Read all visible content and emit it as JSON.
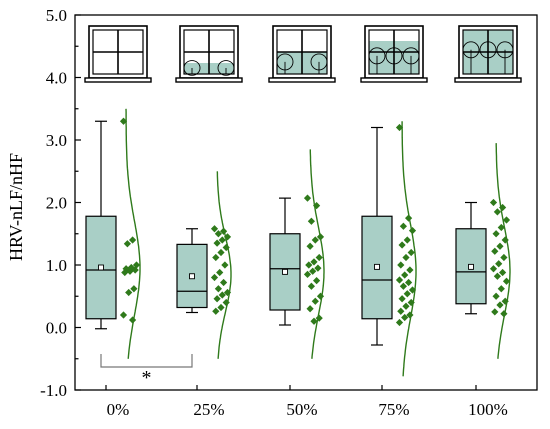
{
  "chart_data": {
    "type": "box",
    "ylabel": "HRV-nLF/nHF",
    "ylim": [
      -1.0,
      5.0
    ],
    "yticks": [
      "-1.0",
      "0.0",
      "1.0",
      "2.0",
      "3.0",
      "4.0",
      "5.0"
    ],
    "categories": [
      "0%",
      "25%",
      "50%",
      "75%",
      "100%"
    ],
    "window_green_fraction": [
      0,
      0.25,
      0.5,
      0.75,
      1.0
    ],
    "colors": {
      "box_fill": "#a9cfc6",
      "accent": "#2f7a1b",
      "axis": "#000000"
    },
    "boxes": [
      {
        "category": "0%",
        "whisker_low": -0.02,
        "q1": 0.14,
        "median": 0.92,
        "q3": 1.78,
        "whisker_high": 3.3,
        "mean": 0.96
      },
      {
        "category": "25%",
        "whisker_low": 0.24,
        "q1": 0.32,
        "median": 0.58,
        "q3": 1.33,
        "whisker_high": 1.58,
        "mean": 0.82
      },
      {
        "category": "50%",
        "whisker_low": 0.04,
        "q1": 0.28,
        "median": 0.94,
        "q3": 1.5,
        "whisker_high": 2.07,
        "mean": 0.89
      },
      {
        "category": "75%",
        "whisker_low": -0.28,
        "q1": 0.14,
        "median": 0.76,
        "q3": 1.78,
        "whisker_high": 3.2,
        "mean": 0.97
      },
      {
        "category": "100%",
        "whisker_low": 0.22,
        "q1": 0.38,
        "median": 0.89,
        "q3": 1.58,
        "whisker_high": 2.0,
        "mean": 0.97
      }
    ],
    "points": [
      [
        3.3,
        1.4,
        1.34,
        1.0,
        0.96,
        0.94,
        0.92,
        0.9,
        0.88,
        0.62,
        0.56,
        0.2,
        0.12
      ],
      [
        1.58,
        1.54,
        1.5,
        1.45,
        1.4,
        1.35,
        1.28,
        1.2,
        1.12,
        1.0,
        0.88,
        0.8,
        0.72,
        0.62,
        0.56,
        0.52,
        0.46,
        0.4,
        0.32,
        0.26
      ],
      [
        2.07,
        1.95,
        1.7,
        1.45,
        1.4,
        1.3,
        1.12,
        1.05,
        1.0,
        0.95,
        0.9,
        0.85,
        0.75,
        0.66,
        0.5,
        0.42,
        0.3,
        0.15,
        0.1
      ],
      [
        3.2,
        1.75,
        1.62,
        1.55,
        1.4,
        1.32,
        1.2,
        1.12,
        1.0,
        0.92,
        0.84,
        0.76,
        0.72,
        0.66,
        0.6,
        0.54,
        0.46,
        0.4,
        0.34,
        0.26,
        0.2,
        0.16,
        0.08
      ],
      [
        2.0,
        1.92,
        1.85,
        1.72,
        1.6,
        1.5,
        1.4,
        1.3,
        1.22,
        1.12,
        1.02,
        0.94,
        0.88,
        0.82,
        0.74,
        0.62,
        0.5,
        0.42,
        0.36,
        0.25,
        0.22
      ]
    ],
    "density_curves": [
      {
        "top": 3.5,
        "bottom": -0.5,
        "mode": 0.95,
        "sigma": 0.75
      },
      {
        "top": 2.5,
        "bottom": -0.5,
        "mode": 0.85,
        "sigma": 0.6
      },
      {
        "top": 2.85,
        "bottom": -0.5,
        "mode": 0.9,
        "sigma": 0.7
      },
      {
        "top": 3.3,
        "bottom": -0.78,
        "mode": 0.9,
        "sigma": 0.75
      },
      {
        "top": 2.95,
        "bottom": -0.5,
        "mode": 0.9,
        "sigma": 0.7
      }
    ],
    "significance": [
      {
        "from": "0%",
        "to": "25%",
        "label": "*"
      }
    ],
    "grid": false,
    "legend": "none"
  }
}
